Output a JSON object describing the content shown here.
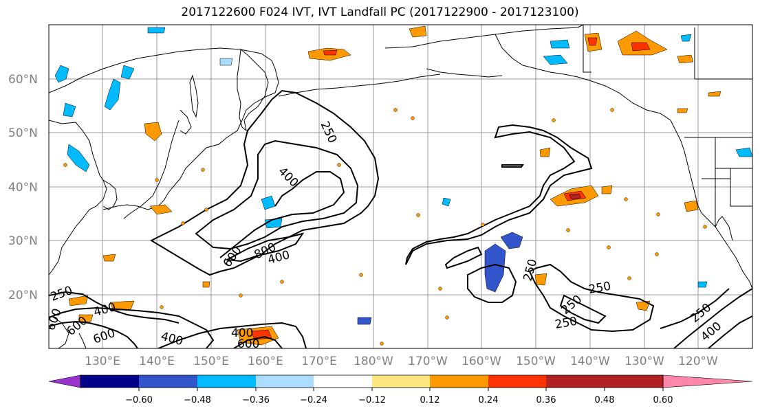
{
  "title": "2017122600 F024 IVT, IVT Landfall PC (2017122900 - 2017123100)",
  "map": {
    "lat_labels": [
      "60°N",
      "50°N",
      "40°N",
      "30°N",
      "20°N"
    ],
    "lon_labels": [
      "130°E",
      "140°E",
      "150°E",
      "160°E",
      "170°E",
      "180°W",
      "170°W",
      "160°W",
      "150°W",
      "140°W",
      "130°W",
      "120°W"
    ],
    "contour_labels": [
      "250",
      "400",
      "600",
      "800",
      "400",
      "600",
      "250",
      "400",
      "600",
      "600",
      "400",
      "600",
      "400",
      "250",
      "250",
      "250",
      "250",
      "250",
      "400"
    ]
  },
  "colorbar": {
    "ticks": [
      "−0.60",
      "−0.48",
      "−0.36",
      "−0.24",
      "−0.12",
      "0.12",
      "0.24",
      "0.36",
      "0.48",
      "0.60"
    ],
    "colors": [
      "#9933cc",
      "#000088",
      "#3355cc",
      "#00bbff",
      "#aaddff",
      "#ffffff",
      "#ffe680",
      "#ff9900",
      "#ff3300",
      "#b22222",
      "#ff88aa"
    ]
  }
}
